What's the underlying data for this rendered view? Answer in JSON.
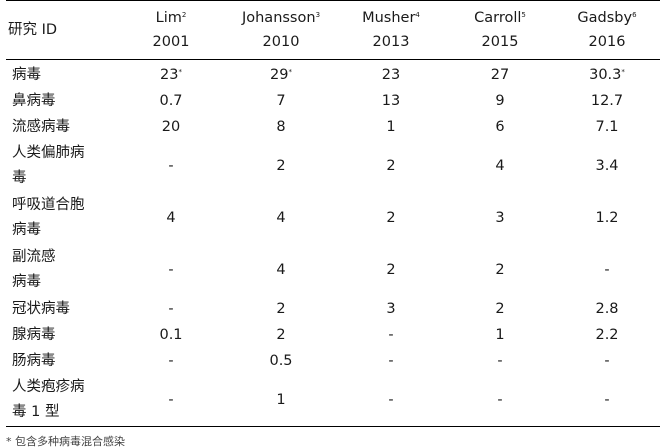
{
  "table": {
    "header_label": "研究 ID",
    "studies": [
      {
        "author": "Lim",
        "ref": "2",
        "year": "2001"
      },
      {
        "author": "Johansson",
        "ref": "3",
        "year": "2010"
      },
      {
        "author": "Musher",
        "ref": "4",
        "year": "2013"
      },
      {
        "author": "Carroll",
        "ref": "5",
        "year": "2015"
      },
      {
        "author": "Gadsby",
        "ref": "6",
        "year": "2016"
      }
    ],
    "rows": [
      {
        "label": [
          "病毒"
        ],
        "values": [
          {
            "v": "23",
            "sup": "*"
          },
          {
            "v": "29",
            "sup": "*"
          },
          {
            "v": "23",
            "sup": ""
          },
          {
            "v": "27",
            "sup": ""
          },
          {
            "v": "30.3",
            "sup": "*"
          }
        ]
      },
      {
        "label": [
          "鼻病毒"
        ],
        "values": [
          {
            "v": "0.7",
            "sup": ""
          },
          {
            "v": "7",
            "sup": ""
          },
          {
            "v": "13",
            "sup": ""
          },
          {
            "v": "9",
            "sup": ""
          },
          {
            "v": "12.7",
            "sup": ""
          }
        ]
      },
      {
        "label": [
          "流感病毒"
        ],
        "values": [
          {
            "v": "20",
            "sup": ""
          },
          {
            "v": "8",
            "sup": ""
          },
          {
            "v": "1",
            "sup": ""
          },
          {
            "v": "6",
            "sup": ""
          },
          {
            "v": "7.1",
            "sup": ""
          }
        ]
      },
      {
        "label": [
          "人类偏肺病",
          "毒"
        ],
        "values": [
          {
            "v": "-",
            "sup": ""
          },
          {
            "v": "2",
            "sup": ""
          },
          {
            "v": "2",
            "sup": ""
          },
          {
            "v": "4",
            "sup": ""
          },
          {
            "v": "3.4",
            "sup": ""
          }
        ]
      },
      {
        "label": [
          "呼吸道合胞",
          "病毒"
        ],
        "values": [
          {
            "v": "4",
            "sup": ""
          },
          {
            "v": "4",
            "sup": ""
          },
          {
            "v": "2",
            "sup": ""
          },
          {
            "v": "3",
            "sup": ""
          },
          {
            "v": "1.2",
            "sup": ""
          }
        ]
      },
      {
        "label": [
          "副流感",
          "病毒"
        ],
        "values": [
          {
            "v": "-",
            "sup": ""
          },
          {
            "v": "4",
            "sup": ""
          },
          {
            "v": "2",
            "sup": ""
          },
          {
            "v": "2",
            "sup": ""
          },
          {
            "v": "-",
            "sup": ""
          }
        ]
      },
      {
        "label": [
          "冠状病毒"
        ],
        "values": [
          {
            "v": "-",
            "sup": ""
          },
          {
            "v": "2",
            "sup": ""
          },
          {
            "v": "3",
            "sup": ""
          },
          {
            "v": "2",
            "sup": ""
          },
          {
            "v": "2.8",
            "sup": ""
          }
        ]
      },
      {
        "label": [
          "腺病毒"
        ],
        "values": [
          {
            "v": "0.1",
            "sup": ""
          },
          {
            "v": "2",
            "sup": ""
          },
          {
            "v": "-",
            "sup": ""
          },
          {
            "v": "1",
            "sup": ""
          },
          {
            "v": "2.2",
            "sup": ""
          }
        ]
      },
      {
        "label": [
          "肠病毒"
        ],
        "values": [
          {
            "v": "-",
            "sup": ""
          },
          {
            "v": "0.5",
            "sup": ""
          },
          {
            "v": "-",
            "sup": ""
          },
          {
            "v": "-",
            "sup": ""
          },
          {
            "v": "-",
            "sup": ""
          }
        ]
      },
      {
        "label": [
          "人类疱疹病",
          "毒 1 型"
        ],
        "values": [
          {
            "v": "-",
            "sup": ""
          },
          {
            "v": "1",
            "sup": ""
          },
          {
            "v": "-",
            "sup": ""
          },
          {
            "v": "-",
            "sup": ""
          },
          {
            "v": "-",
            "sup": ""
          }
        ]
      }
    ]
  },
  "footnote": "* 包含多种病毒混合感染"
}
